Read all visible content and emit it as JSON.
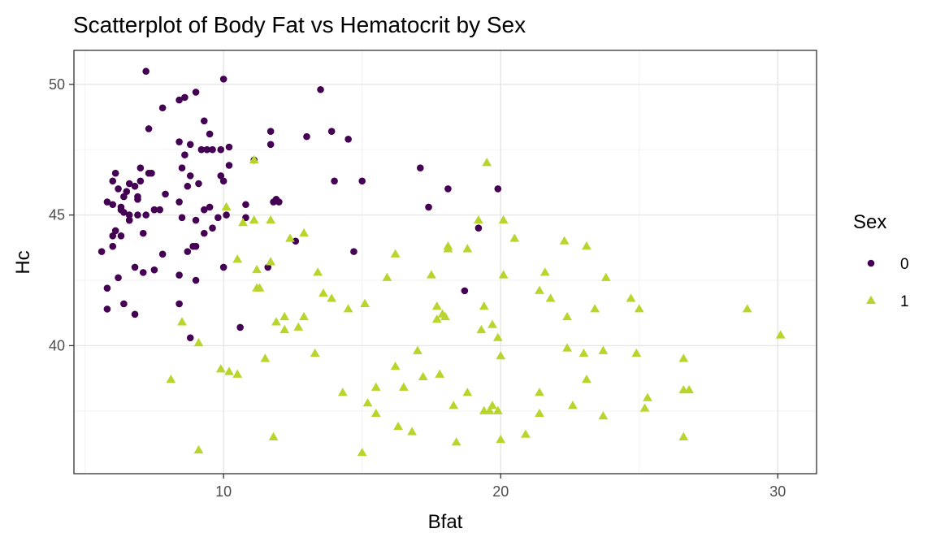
{
  "chart_data": {
    "type": "scatter",
    "title": "Scatterplot of Body Fat vs Hematocrit by Sex",
    "xlabel": "Bfat",
    "ylabel": "Hc",
    "xlim": [
      4.6,
      31.4
    ],
    "ylim": [
      35.1,
      51.3
    ],
    "x_ticks": [
      10,
      20,
      30
    ],
    "y_ticks": [
      40,
      45,
      50
    ],
    "grid": true,
    "legend": {
      "title": "Sex",
      "position": "right"
    },
    "series": [
      {
        "name": "0",
        "marker": "circle",
        "color": "#440154",
        "points": [
          [
            7.2,
            50.5
          ],
          [
            10.0,
            50.2
          ],
          [
            9.0,
            49.7
          ],
          [
            13.5,
            49.8
          ],
          [
            8.6,
            49.5
          ],
          [
            8.4,
            49.4
          ],
          [
            7.8,
            49.1
          ],
          [
            9.3,
            48.6
          ],
          [
            7.3,
            48.3
          ],
          [
            9.5,
            48.1
          ],
          [
            11.7,
            48.2
          ],
          [
            13.9,
            48.2
          ],
          [
            13.0,
            48.0
          ],
          [
            14.5,
            47.9
          ],
          [
            8.4,
            47.8
          ],
          [
            8.8,
            47.7
          ],
          [
            11.7,
            47.7
          ],
          [
            9.4,
            47.5
          ],
          [
            9.2,
            47.5
          ],
          [
            9.6,
            47.5
          ],
          [
            9.9,
            47.5
          ],
          [
            10.2,
            47.6
          ],
          [
            8.6,
            47.3
          ],
          [
            11.1,
            47.1
          ],
          [
            8.5,
            46.8
          ],
          [
            10.2,
            46.9
          ],
          [
            7.0,
            46.8
          ],
          [
            7.3,
            46.6
          ],
          [
            7.4,
            46.6
          ],
          [
            6.1,
            46.6
          ],
          [
            8.8,
            46.5
          ],
          [
            6.0,
            46.3
          ],
          [
            7.0,
            46.3
          ],
          [
            9.9,
            46.5
          ],
          [
            14.0,
            46.3
          ],
          [
            15.0,
            46.3
          ],
          [
            17.1,
            46.8
          ],
          [
            18.1,
            46.0
          ],
          [
            19.9,
            46.0
          ],
          [
            6.6,
            46.2
          ],
          [
            6.8,
            46.1
          ],
          [
            6.2,
            46.0
          ],
          [
            8.7,
            46.1
          ],
          [
            9.1,
            46.2
          ],
          [
            10.0,
            46.3
          ],
          [
            6.5,
            45.9
          ],
          [
            7.9,
            45.8
          ],
          [
            6.9,
            45.7
          ],
          [
            6.4,
            45.7
          ],
          [
            6.9,
            45.6
          ],
          [
            5.8,
            45.5
          ],
          [
            6.0,
            45.4
          ],
          [
            6.3,
            45.3
          ],
          [
            6.3,
            45.2
          ],
          [
            7.7,
            45.2
          ],
          [
            8.4,
            45.5
          ],
          [
            9.5,
            45.3
          ],
          [
            9.3,
            45.2
          ],
          [
            10.8,
            45.4
          ],
          [
            11.9,
            45.6
          ],
          [
            11.8,
            45.5
          ],
          [
            12.0,
            45.5
          ],
          [
            17.4,
            45.3
          ],
          [
            6.4,
            45.1
          ],
          [
            6.6,
            45.0
          ],
          [
            6.9,
            45.0
          ],
          [
            7.2,
            45.0
          ],
          [
            7.5,
            45.2
          ],
          [
            8.5,
            44.9
          ],
          [
            9.0,
            44.8
          ],
          [
            9.8,
            44.9
          ],
          [
            10.1,
            45.0
          ],
          [
            6.6,
            44.8
          ],
          [
            6.6,
            44.8
          ],
          [
            6.1,
            44.4
          ],
          [
            6.0,
            44.2
          ],
          [
            7.1,
            44.3
          ],
          [
            6.3,
            44.2
          ],
          [
            9.6,
            44.5
          ],
          [
            9.3,
            44.3
          ],
          [
            10.8,
            44.9
          ],
          [
            12.6,
            44.0
          ],
          [
            6.0,
            43.8
          ],
          [
            5.6,
            43.6
          ],
          [
            7.8,
            43.5
          ],
          [
            8.7,
            43.6
          ],
          [
            8.9,
            43.8
          ],
          [
            9.0,
            43.8
          ],
          [
            14.7,
            43.6
          ],
          [
            19.2,
            44.5
          ],
          [
            6.8,
            43.0
          ],
          [
            7.1,
            42.8
          ],
          [
            7.5,
            42.9
          ],
          [
            10.0,
            43.0
          ],
          [
            11.6,
            43.0
          ],
          [
            8.4,
            42.7
          ],
          [
            9.0,
            42.5
          ],
          [
            6.2,
            42.6
          ],
          [
            5.8,
            42.2
          ],
          [
            18.7,
            42.1
          ],
          [
            8.4,
            41.6
          ],
          [
            6.4,
            41.6
          ],
          [
            5.8,
            41.4
          ],
          [
            6.8,
            41.2
          ],
          [
            10.6,
            40.7
          ],
          [
            8.8,
            40.3
          ]
        ]
      },
      {
        "name": "1",
        "marker": "triangle",
        "color": "#b8d52d",
        "points": [
          [
            19.5,
            47.0
          ],
          [
            11.1,
            47.1
          ],
          [
            10.1,
            45.3
          ],
          [
            11.7,
            44.8
          ],
          [
            10.7,
            44.7
          ],
          [
            11.1,
            44.8
          ],
          [
            19.2,
            44.8
          ],
          [
            20.1,
            44.8
          ],
          [
            12.9,
            44.3
          ],
          [
            12.4,
            44.1
          ],
          [
            20.5,
            44.1
          ],
          [
            22.3,
            44.0
          ],
          [
            23.1,
            43.8
          ],
          [
            18.1,
            43.8
          ],
          [
            18.1,
            43.7
          ],
          [
            18.8,
            43.7
          ],
          [
            16.2,
            43.5
          ],
          [
            10.5,
            43.3
          ],
          [
            11.7,
            43.2
          ],
          [
            11.2,
            42.9
          ],
          [
            13.4,
            42.8
          ],
          [
            17.5,
            42.7
          ],
          [
            15.9,
            42.6
          ],
          [
            20.1,
            42.7
          ],
          [
            21.6,
            42.8
          ],
          [
            23.8,
            42.6
          ],
          [
            11.2,
            42.2
          ],
          [
            11.3,
            42.2
          ],
          [
            21.4,
            42.1
          ],
          [
            13.6,
            42.0
          ],
          [
            13.9,
            41.8
          ],
          [
            21.8,
            41.8
          ],
          [
            24.7,
            41.8
          ],
          [
            15.1,
            41.6
          ],
          [
            14.5,
            41.4
          ],
          [
            17.7,
            41.5
          ],
          [
            19.4,
            41.5
          ],
          [
            23.4,
            41.4
          ],
          [
            25.0,
            41.4
          ],
          [
            28.9,
            41.4
          ],
          [
            12.2,
            41.1
          ],
          [
            12.9,
            41.1
          ],
          [
            17.9,
            41.2
          ],
          [
            18.0,
            41.1
          ],
          [
            17.7,
            41.0
          ],
          [
            22.4,
            41.1
          ],
          [
            11.9,
            40.9
          ],
          [
            8.5,
            40.9
          ],
          [
            12.2,
            40.6
          ],
          [
            12.7,
            40.7
          ],
          [
            19.3,
            40.6
          ],
          [
            19.7,
            40.8
          ],
          [
            30.1,
            40.4
          ],
          [
            19.9,
            40.3
          ],
          [
            9.1,
            40.1
          ],
          [
            17.0,
            39.8
          ],
          [
            22.4,
            39.9
          ],
          [
            23.7,
            39.8
          ],
          [
            13.3,
            39.7
          ],
          [
            23.0,
            39.7
          ],
          [
            24.9,
            39.7
          ],
          [
            11.5,
            39.5
          ],
          [
            26.6,
            39.5
          ],
          [
            20.0,
            39.6
          ],
          [
            9.9,
            39.1
          ],
          [
            10.2,
            39.0
          ],
          [
            10.5,
            38.9
          ],
          [
            16.2,
            39.2
          ],
          [
            17.2,
            38.8
          ],
          [
            17.8,
            38.9
          ],
          [
            8.1,
            38.7
          ],
          [
            23.1,
            38.7
          ],
          [
            15.5,
            38.4
          ],
          [
            16.5,
            38.4
          ],
          [
            26.6,
            38.3
          ],
          [
            26.8,
            38.3
          ],
          [
            14.3,
            38.2
          ],
          [
            18.8,
            38.2
          ],
          [
            21.4,
            38.2
          ],
          [
            25.3,
            38.0
          ],
          [
            15.2,
            37.8
          ],
          [
            18.3,
            37.7
          ],
          [
            19.7,
            37.7
          ],
          [
            22.6,
            37.7
          ],
          [
            25.2,
            37.6
          ],
          [
            19.4,
            37.5
          ],
          [
            19.6,
            37.5
          ],
          [
            19.9,
            37.5
          ],
          [
            15.5,
            37.4
          ],
          [
            21.4,
            37.4
          ],
          [
            23.7,
            37.3
          ],
          [
            16.3,
            36.9
          ],
          [
            16.8,
            36.7
          ],
          [
            20.9,
            36.6
          ],
          [
            11.8,
            36.5
          ],
          [
            18.4,
            36.3
          ],
          [
            20.0,
            36.4
          ],
          [
            26.6,
            36.5
          ],
          [
            9.1,
            36.0
          ],
          [
            15.0,
            35.9
          ]
        ]
      }
    ]
  }
}
